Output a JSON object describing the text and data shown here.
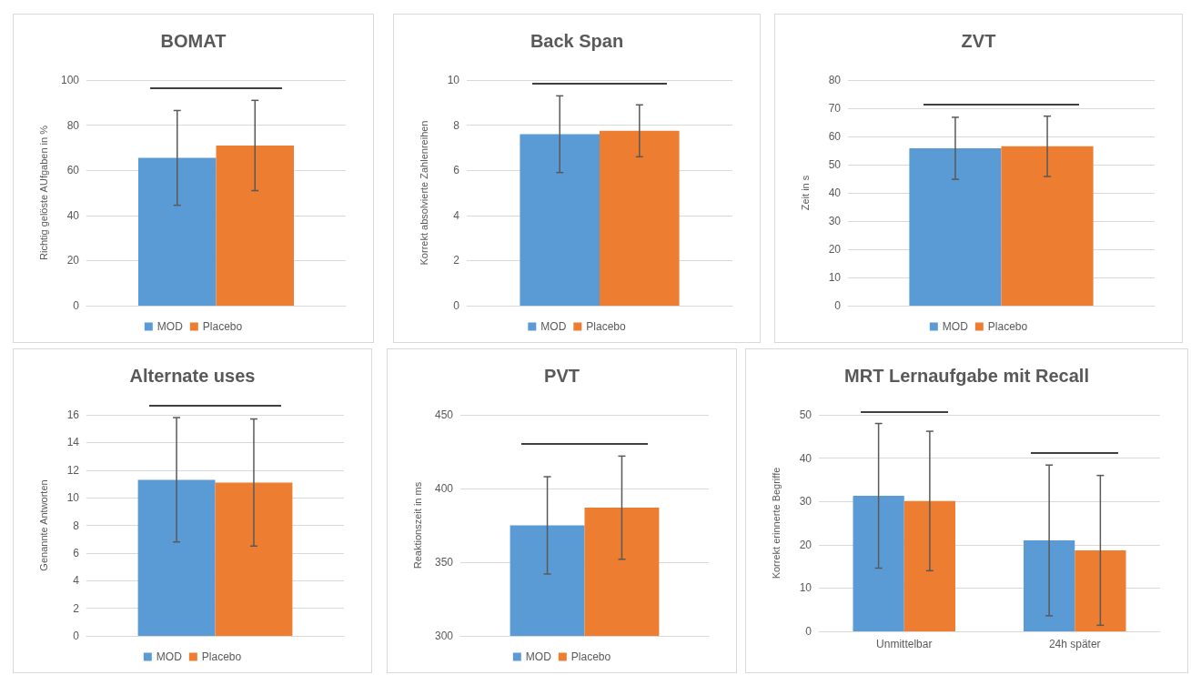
{
  "chart_data": [
    {
      "type": "bar",
      "title": "BOMAT",
      "ylabel": "Richtig gelöste AUfgaben in %",
      "categories": [
        null
      ],
      "ylim": [
        0,
        100
      ],
      "yticks": [
        0,
        20,
        40,
        60,
        80,
        100
      ],
      "grid": "y",
      "legend": "bottom",
      "series": [
        {
          "name": "MOD",
          "color": "#5b9bd5",
          "values": [
            65.5
          ],
          "errors": [
            21
          ]
        },
        {
          "name": "Placebo",
          "color": "#ed7d31",
          "values": [
            71
          ],
          "errors": [
            20
          ]
        }
      ]
    },
    {
      "type": "bar",
      "title": "Back Span",
      "ylabel": "Korrekt absolvierte Zahlenreihen",
      "categories": [
        null
      ],
      "ylim": [
        0,
        10
      ],
      "yticks": [
        0,
        2,
        4,
        6,
        8,
        10
      ],
      "grid": "y",
      "legend": "bottom",
      "series": [
        {
          "name": "MOD",
          "color": "#5b9bd5",
          "values": [
            7.6
          ],
          "errors": [
            1.7
          ]
        },
        {
          "name": "Placebo",
          "color": "#ed7d31",
          "values": [
            7.75
          ],
          "errors": [
            1.15
          ]
        }
      ]
    },
    {
      "type": "bar",
      "title": "ZVT",
      "ylabel": "Zeit in s",
      "categories": [
        null
      ],
      "ylim": [
        0,
        80
      ],
      "yticks": [
        0,
        10,
        20,
        30,
        40,
        50,
        60,
        70,
        80
      ],
      "grid": "y",
      "legend": "bottom",
      "series": [
        {
          "name": "MOD",
          "color": "#5b9bd5",
          "values": [
            55.8
          ],
          "errors": [
            11
          ]
        },
        {
          "name": "Placebo",
          "color": "#ed7d31",
          "values": [
            56.5
          ],
          "errors": [
            10.7
          ]
        }
      ]
    },
    {
      "type": "bar",
      "title": "Alternate uses",
      "ylabel": "Genannte Antworten",
      "categories": [
        null
      ],
      "ylim": [
        0,
        16
      ],
      "yticks": [
        0,
        2,
        4,
        6,
        8,
        10,
        12,
        14,
        16
      ],
      "grid": "y",
      "legend": "bottom",
      "series": [
        {
          "name": "MOD",
          "color": "#5b9bd5",
          "values": [
            11.3
          ],
          "errors": [
            4.5
          ]
        },
        {
          "name": "Placebo",
          "color": "#ed7d31",
          "values": [
            11.1
          ],
          "errors": [
            4.6
          ]
        }
      ]
    },
    {
      "type": "bar",
      "title": "PVT",
      "ylabel": "Reaktionszeit in ms",
      "categories": [
        null
      ],
      "ylim": [
        300,
        450
      ],
      "yticks": [
        300,
        350,
        400,
        450
      ],
      "grid": "y",
      "legend": "bottom",
      "series": [
        {
          "name": "MOD",
          "color": "#5b9bd5",
          "values": [
            375
          ],
          "errors": [
            33
          ]
        },
        {
          "name": "Placebo",
          "color": "#ed7d31",
          "values": [
            387
          ],
          "errors": [
            35
          ]
        }
      ]
    },
    {
      "type": "bar",
      "title": "MRT Lernaufgabe mit Recall",
      "ylabel": "Korrekt erinnerte Begriffe",
      "categories": [
        "Unmittelbar",
        "24h später"
      ],
      "ylim": [
        0,
        50
      ],
      "yticks": [
        0,
        10,
        20,
        30,
        40,
        50
      ],
      "grid": "y",
      "series": [
        {
          "color": "#5b9bd5",
          "values": [
            31.3,
            21
          ],
          "errors": [
            16.7,
            17.4
          ]
        },
        {
          "color": "#ed7d31",
          "values": [
            30.1,
            18.7
          ],
          "errors": [
            16.1,
            17.3
          ]
        }
      ]
    }
  ]
}
